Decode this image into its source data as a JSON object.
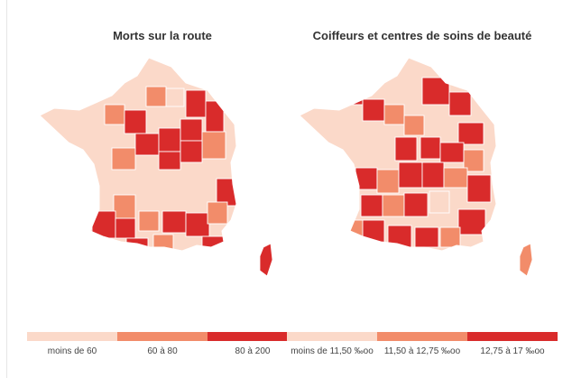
{
  "colors": {
    "low": "#fbd9c9",
    "mid": "#f28c6a",
    "high": "#d92b2b"
  },
  "maps": [
    {
      "title": "Morts sur la route",
      "legend": [
        "moins de 60",
        "60 à 80",
        "80 à 200"
      ]
    },
    {
      "title": "Coiffeurs et centres de soins de beauté",
      "legend": [
        "moins de 11,50 ‰oo",
        "11,50 à 12,75 ‰oo",
        "12,75 à 17 ‰oo"
      ]
    }
  ]
}
